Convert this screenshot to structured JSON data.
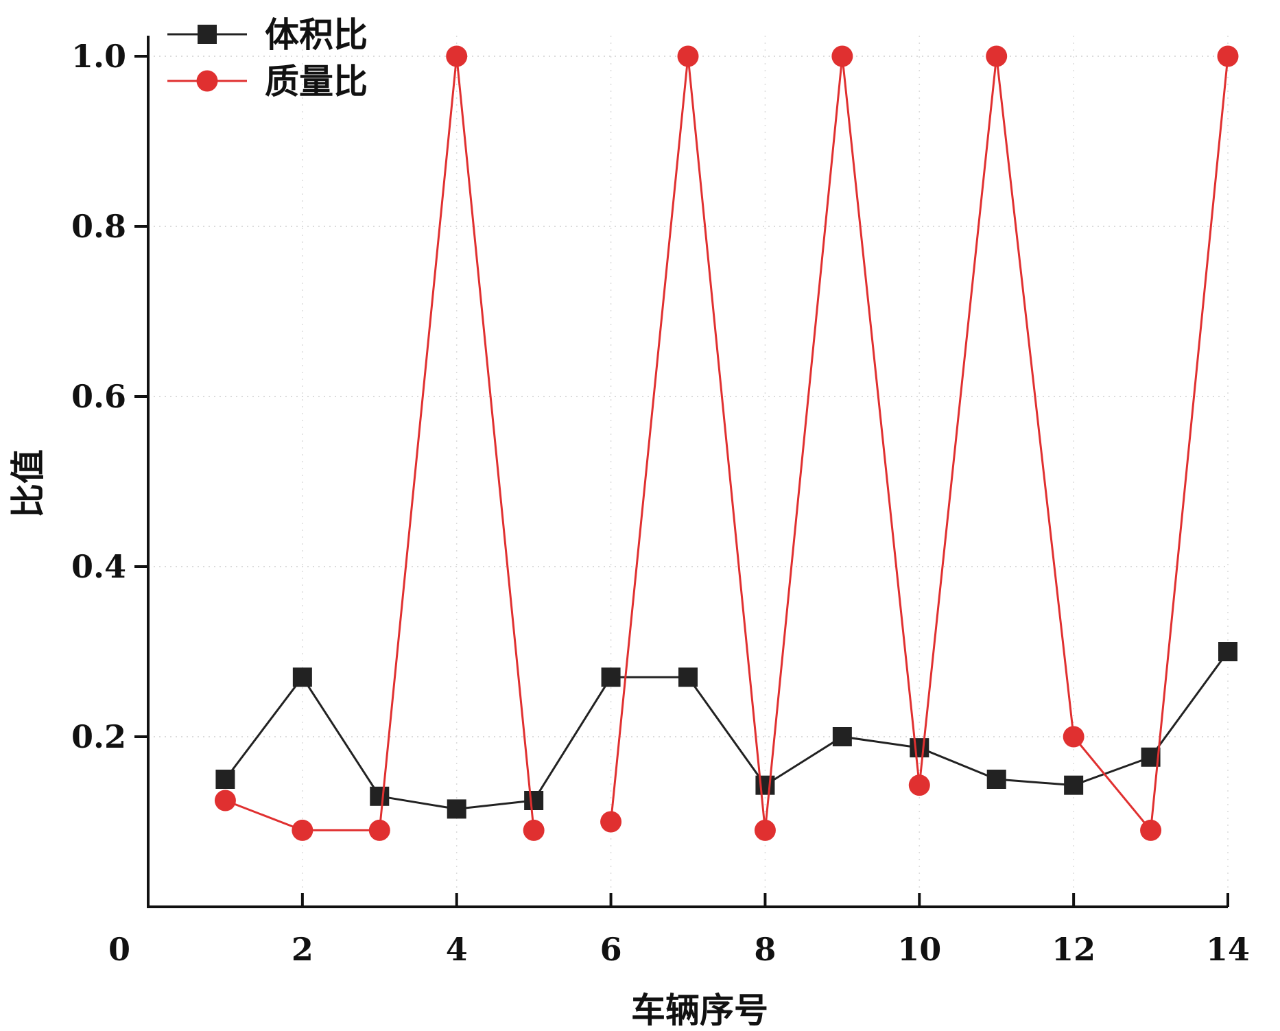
{
  "chart_data": {
    "type": "line",
    "xlabel": "车辆序号",
    "ylabel": "比值",
    "xlim": [
      0,
      14
    ],
    "ylim": [
      0,
      1.0
    ],
    "x_ticks": [
      0,
      2,
      4,
      6,
      8,
      10,
      12,
      14
    ],
    "x_tick_labels": [
      "0",
      "2",
      "4",
      "6",
      "8",
      "10",
      "12",
      "14"
    ],
    "y_ticks": [
      0.2,
      0.4,
      0.6,
      0.8,
      1.0
    ],
    "y_tick_labels": [
      "0.2",
      "0.4",
      "0.6",
      "0.8",
      "1.0"
    ],
    "grid": "dotted",
    "legend_position": "top-left",
    "x": [
      1,
      2,
      3,
      4,
      5,
      6,
      7,
      8,
      9,
      10,
      11,
      12,
      13,
      14
    ],
    "series": [
      {
        "name": "体积比",
        "color": "#222222",
        "marker": "square",
        "values": [
          0.15,
          0.27,
          0.13,
          0.115,
          0.125,
          0.27,
          0.27,
          0.143,
          0.2,
          0.187,
          0.15,
          0.143,
          0.176,
          0.3
        ]
      },
      {
        "name": "质量比",
        "color": "#e03030",
        "marker": "circle",
        "values": [
          0.125,
          0.09,
          0.09,
          1.0,
          0.09,
          0.1,
          1.0,
          0.09,
          1.0,
          0.143,
          1.0,
          0.2,
          0.09,
          1.0
        ],
        "segments": [
          [
            1,
            2,
            3,
            4,
            5
          ],
          [
            6,
            7,
            8,
            9,
            10,
            11,
            12,
            13,
            14
          ]
        ]
      }
    ]
  }
}
